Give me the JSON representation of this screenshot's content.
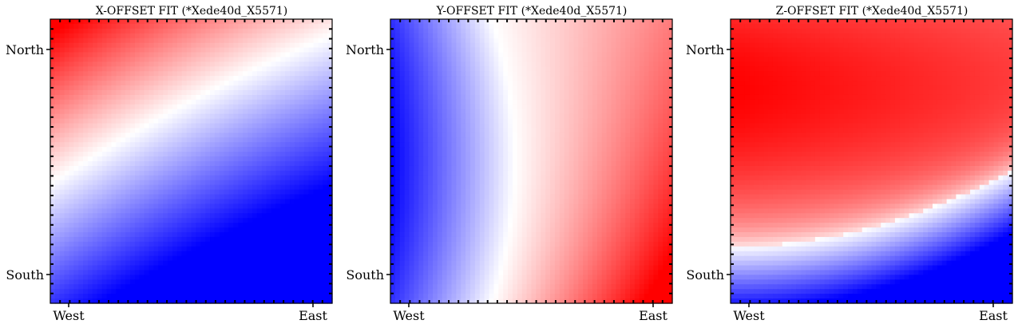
{
  "chart_data": [
    {
      "type": "heatmap",
      "title": "X-OFFSET FIT (*Xede40d_X5571)",
      "x_tick_labels": [
        "West",
        "East"
      ],
      "y_tick_labels": [
        "North",
        "South"
      ],
      "colormap": "bwr",
      "colors": {
        "negative": "#0000ff",
        "zero": "#ffffff",
        "positive": "#ff0000"
      },
      "grid": false
    },
    {
      "type": "heatmap",
      "title": "Y-OFFSET FIT (*Xede40d_X5571)",
      "x_tick_labels": [
        "West",
        "East"
      ],
      "y_tick_labels": [
        "North",
        "South"
      ],
      "colormap": "bwr",
      "colors": {
        "negative": "#0000ff",
        "zero": "#ffffff",
        "positive": "#ff0000"
      },
      "grid": false
    },
    {
      "type": "heatmap",
      "title": "Z-OFFSET FIT (*Xede40d_X5571)",
      "x_tick_labels": [
        "West",
        "East"
      ],
      "y_tick_labels": [
        "North",
        "South"
      ],
      "colormap": "bwr",
      "colors": {
        "negative": "#0000ff",
        "zero": "#ffffff",
        "positive": "#ff0000"
      },
      "grid": false
    }
  ]
}
